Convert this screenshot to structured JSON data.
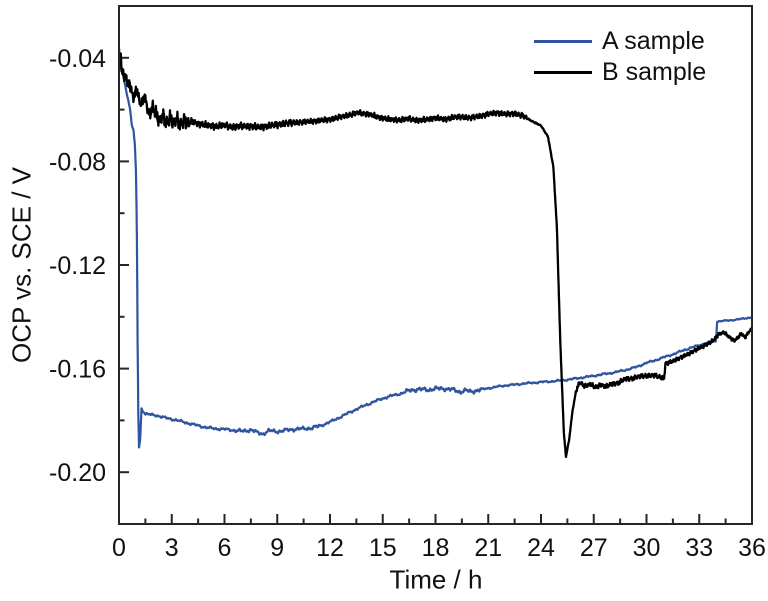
{
  "figure": {
    "background": "#ffffff",
    "frame_color": "#262626",
    "text_color": "#111111"
  },
  "chart_data": {
    "type": "line",
    "title": "",
    "xlabel": "Time / h",
    "ylabel": "OCP vs. SCE / V",
    "xlim": [
      0,
      36
    ],
    "ylim": [
      -0.22,
      -0.02
    ],
    "grid": false,
    "legend_position": "top-right-inside",
    "x_ticks": {
      "values": [
        0,
        3,
        6,
        9,
        12,
        15,
        18,
        21,
        24,
        27,
        30,
        33,
        36
      ],
      "labels": [
        "0",
        "3",
        "6",
        "9",
        "12",
        "15",
        "18",
        "21",
        "24",
        "27",
        "30",
        "33",
        "36"
      ],
      "minor_step": 1.5
    },
    "y_ticks": {
      "values": [
        -0.2,
        -0.16,
        -0.12,
        -0.08,
        -0.04
      ],
      "labels": [
        "-0.20",
        "-0.16",
        "-0.12",
        "-0.08",
        "-0.04"
      ],
      "minor_step": 0.02
    },
    "series": [
      {
        "name": "A sample",
        "color": "#2F55A0",
        "line_width": 2.2,
        "anchors": [
          [
            0,
            -0.0405
          ],
          [
            0.1,
            -0.0435
          ],
          [
            0.2,
            -0.046
          ],
          [
            0.35,
            -0.0505
          ],
          [
            0.5,
            -0.0555
          ],
          [
            0.62,
            -0.0595
          ],
          [
            0.72,
            -0.0655
          ],
          [
            0.82,
            -0.068
          ],
          [
            0.9,
            -0.0735
          ],
          [
            0.97,
            -0.085
          ],
          [
            1.02,
            -0.11
          ],
          [
            1.06,
            -0.15
          ],
          [
            1.1,
            -0.178
          ],
          [
            1.14,
            -0.1905
          ],
          [
            1.2,
            -0.1875
          ],
          [
            1.28,
            -0.1755
          ],
          [
            1.5,
            -0.1775
          ],
          [
            1.8,
            -0.1778
          ],
          [
            2.1,
            -0.178
          ],
          [
            2.5,
            -0.1788
          ],
          [
            3,
            -0.1795
          ],
          [
            3.5,
            -0.1803
          ],
          [
            4,
            -0.1812
          ],
          [
            4.5,
            -0.182
          ],
          [
            5,
            -0.1828
          ],
          [
            5.5,
            -0.1832
          ],
          [
            6,
            -0.1834
          ],
          [
            6.5,
            -0.1838
          ],
          [
            7,
            -0.1842
          ],
          [
            7.5,
            -0.1836
          ],
          [
            7.9,
            -0.1848
          ],
          [
            8.2,
            -0.1852
          ],
          [
            8.5,
            -0.184
          ],
          [
            9,
            -0.1843
          ],
          [
            9.5,
            -0.1838
          ],
          [
            10,
            -0.1834
          ],
          [
            10.5,
            -0.1832
          ],
          [
            11,
            -0.1829
          ],
          [
            11.5,
            -0.182
          ],
          [
            12,
            -0.1806
          ],
          [
            12.5,
            -0.179
          ],
          [
            13,
            -0.1773
          ],
          [
            13.5,
            -0.1757
          ],
          [
            14,
            -0.1742
          ],
          [
            14.5,
            -0.1728
          ],
          [
            15,
            -0.1715
          ],
          [
            15.5,
            -0.1705
          ],
          [
            16,
            -0.1697
          ],
          [
            16.6,
            -0.1683
          ],
          [
            17,
            -0.168
          ],
          [
            17.5,
            -0.1682
          ],
          [
            18,
            -0.1678
          ],
          [
            18.5,
            -0.1677
          ],
          [
            19,
            -0.1682
          ],
          [
            19.4,
            -0.169
          ],
          [
            19.7,
            -0.1684
          ],
          [
            20,
            -0.169
          ],
          [
            20.4,
            -0.1683
          ],
          [
            21,
            -0.1676
          ],
          [
            21.5,
            -0.167
          ],
          [
            22,
            -0.1665
          ],
          [
            22.5,
            -0.1662
          ],
          [
            23,
            -0.1658
          ],
          [
            23.5,
            -0.1655
          ],
          [
            24,
            -0.1652
          ],
          [
            24.5,
            -0.165
          ],
          [
            25,
            -0.1647
          ],
          [
            25.5,
            -0.1643
          ],
          [
            26,
            -0.1638
          ],
          [
            26.5,
            -0.1633
          ],
          [
            27,
            -0.1628
          ],
          [
            27.5,
            -0.1622
          ],
          [
            28,
            -0.1617
          ],
          [
            28.5,
            -0.161
          ],
          [
            29,
            -0.1602
          ],
          [
            29.5,
            -0.1592
          ],
          [
            30,
            -0.1578
          ],
          [
            30.5,
            -0.1568
          ],
          [
            31,
            -0.1556
          ],
          [
            31.5,
            -0.1545
          ],
          [
            32,
            -0.1532
          ],
          [
            32.5,
            -0.152
          ],
          [
            33,
            -0.151
          ],
          [
            33.4,
            -0.1502
          ],
          [
            33.95,
            -0.1493
          ],
          [
            34.02,
            -0.1418
          ],
          [
            34.5,
            -0.1415
          ],
          [
            35,
            -0.1412
          ],
          [
            35.5,
            -0.1407
          ],
          [
            36,
            -0.1402
          ]
        ],
        "noise": {
          "segments": [
            [
              0,
              0.0003
            ],
            [
              1.35,
              0.0004
            ],
            [
              6.5,
              0.0006
            ],
            [
              11.5,
              0.0004
            ],
            [
              16.3,
              0.0007
            ],
            [
              20.6,
              0.0003
            ],
            [
              33.5,
              0.0002
            ]
          ],
          "freqs": [
            7.3,
            19.1,
            41.7
          ],
          "phase": 1.3
        }
      },
      {
        "name": "B sample",
        "color": "#000000",
        "line_width": 2.3,
        "anchors": [
          [
            0,
            -0.036
          ],
          [
            0.05,
            -0.043
          ],
          [
            0.1,
            -0.038
          ],
          [
            0.15,
            -0.047
          ],
          [
            0.2,
            -0.0435
          ],
          [
            0.3,
            -0.0485
          ],
          [
            0.4,
            -0.046
          ],
          [
            0.5,
            -0.051
          ],
          [
            0.6,
            -0.049
          ],
          [
            0.7,
            -0.053
          ],
          [
            0.85,
            -0.0555
          ],
          [
            1,
            -0.052
          ],
          [
            1.15,
            -0.0565
          ],
          [
            1.3,
            -0.058
          ],
          [
            1.45,
            -0.0545
          ],
          [
            1.6,
            -0.059
          ],
          [
            1.75,
            -0.062
          ],
          [
            1.9,
            -0.059
          ],
          [
            2.1,
            -0.0615
          ],
          [
            2.3,
            -0.0645
          ],
          [
            2.5,
            -0.062
          ],
          [
            2.7,
            -0.0655
          ],
          [
            2.9,
            -0.063
          ],
          [
            3.1,
            -0.0655
          ],
          [
            3.3,
            -0.0635
          ],
          [
            3.5,
            -0.066
          ],
          [
            3.7,
            -0.064
          ],
          [
            3.9,
            -0.0655
          ],
          [
            4.2,
            -0.0645
          ],
          [
            4.5,
            -0.0655
          ],
          [
            5,
            -0.066
          ],
          [
            5.5,
            -0.0665
          ],
          [
            6,
            -0.066
          ],
          [
            6.5,
            -0.0668
          ],
          [
            7,
            -0.0663
          ],
          [
            7.5,
            -0.0665
          ],
          [
            8,
            -0.0668
          ],
          [
            8.5,
            -0.0663
          ],
          [
            9,
            -0.0658
          ],
          [
            9.5,
            -0.0653
          ],
          [
            10,
            -0.065
          ],
          [
            10.5,
            -0.0648
          ],
          [
            11,
            -0.0645
          ],
          [
            11.5,
            -0.0642
          ],
          [
            12,
            -0.0638
          ],
          [
            12.5,
            -0.063
          ],
          [
            13,
            -0.0622
          ],
          [
            13.6,
            -0.0612
          ],
          [
            14.2,
            -0.0618
          ],
          [
            14.8,
            -0.063
          ],
          [
            15.4,
            -0.0638
          ],
          [
            16,
            -0.064
          ],
          [
            16.5,
            -0.0635
          ],
          [
            17,
            -0.0642
          ],
          [
            17.5,
            -0.0638
          ],
          [
            18,
            -0.0632
          ],
          [
            18.5,
            -0.0638
          ],
          [
            19,
            -0.063
          ],
          [
            19.5,
            -0.0628
          ],
          [
            20,
            -0.0632
          ],
          [
            20.5,
            -0.0625
          ],
          [
            21,
            -0.0618
          ],
          [
            21.5,
            -0.0612
          ],
          [
            22,
            -0.0618
          ],
          [
            22.5,
            -0.0615
          ],
          [
            23,
            -0.0625
          ],
          [
            23.5,
            -0.0645
          ],
          [
            24,
            -0.0662
          ],
          [
            24.4,
            -0.0705
          ],
          [
            24.7,
            -0.082
          ],
          [
            24.9,
            -0.105
          ],
          [
            25.1,
            -0.15
          ],
          [
            25.3,
            -0.185
          ],
          [
            25.42,
            -0.194
          ],
          [
            25.6,
            -0.1875
          ],
          [
            25.8,
            -0.176
          ],
          [
            26,
            -0.1685
          ],
          [
            26.2,
            -0.1652
          ],
          [
            26.5,
            -0.1668
          ],
          [
            26.8,
            -0.166
          ],
          [
            27.1,
            -0.1672
          ],
          [
            27.4,
            -0.1662
          ],
          [
            27.7,
            -0.167
          ],
          [
            28,
            -0.166
          ],
          [
            28.4,
            -0.1655
          ],
          [
            28.8,
            -0.164
          ],
          [
            29.2,
            -0.1638
          ],
          [
            29.6,
            -0.163
          ],
          [
            30,
            -0.1628
          ],
          [
            30.4,
            -0.1625
          ],
          [
            30.7,
            -0.1632
          ],
          [
            31,
            -0.1638
          ],
          [
            31.08,
            -0.158
          ],
          [
            31.5,
            -0.1572
          ],
          [
            32,
            -0.1555
          ],
          [
            32.5,
            -0.154
          ],
          [
            33,
            -0.152
          ],
          [
            33.5,
            -0.1505
          ],
          [
            33.8,
            -0.149
          ],
          [
            34.1,
            -0.1468
          ],
          [
            34.4,
            -0.146
          ],
          [
            34.7,
            -0.1478
          ],
          [
            35,
            -0.1492
          ],
          [
            35.2,
            -0.148
          ],
          [
            35.4,
            -0.1465
          ],
          [
            35.6,
            -0.148
          ],
          [
            35.8,
            -0.146
          ],
          [
            36,
            -0.1445
          ]
        ],
        "noise": {
          "segments": [
            [
              0,
              0.0018
            ],
            [
              1.9,
              0.0022
            ],
            [
              4,
              0.001
            ],
            [
              10,
              0.0008
            ],
            [
              23.2,
              0.0002
            ],
            [
              25.9,
              0.0007
            ],
            [
              31.1,
              0.0006
            ],
            [
              34,
              0.0005
            ]
          ],
          "freqs": [
            31.4,
            71.3,
            149.2
          ],
          "phase": 4.2
        }
      }
    ]
  }
}
